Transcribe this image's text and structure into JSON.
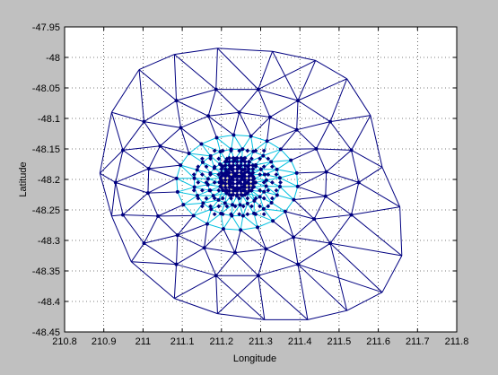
{
  "chart_data": {
    "type": "scatter",
    "title": "",
    "xlabel": "Longitude",
    "ylabel": "Latitude",
    "xlim": [
      210.8,
      211.8
    ],
    "ylim": [
      -48.45,
      -47.95
    ],
    "grid": true,
    "xticks": [
      "210.8",
      "210.9",
      "211",
      "211.1",
      "211.2",
      "211.3",
      "211.4",
      "211.5",
      "211.6",
      "211.7",
      "211.8"
    ],
    "yticks": [
      "-47.95",
      "-48",
      "-48.05",
      "-48.1",
      "-48.15",
      "-48.2",
      "-48.25",
      "-48.3",
      "-48.35",
      "-48.4",
      "-48.45"
    ],
    "colors": {
      "outer_mesh": "#000080",
      "inner_mesh": "#00c0e0",
      "core_mesh": "#e8e090",
      "nodes": "#000080",
      "figure_bg": "#c0c0c0",
      "axes_bg": "#ffffff"
    },
    "mesh": {
      "center": [
        211.24,
        -48.205
      ],
      "rings": [
        {
          "rx": 0.02,
          "ry": 0.01,
          "n": 14,
          "phase": 0.0,
          "level": "core"
        },
        {
          "rx": 0.045,
          "ry": 0.022,
          "n": 20,
          "phase": 0.3,
          "level": "core"
        },
        {
          "rx": 0.075,
          "ry": 0.037,
          "n": 24,
          "phase": 0.1,
          "level": "inner"
        },
        {
          "rx": 0.11,
          "ry": 0.055,
          "n": 24,
          "phase": 0.4,
          "level": "inner"
        },
        {
          "rx": 0.155,
          "ry": 0.078,
          "n": 22,
          "phase": 0.2,
          "level": "inner"
        },
        {
          "rx": 0.23,
          "ry": 0.115,
          "n": 18,
          "phase": 0.5,
          "level": "outer"
        },
        {
          "rx": 0.31,
          "ry": 0.155,
          "n": 18,
          "phase": 0.0,
          "level": "outer"
        }
      ],
      "outer_boundary": [
        [
          211.19,
          -47.985
        ],
        [
          211.33,
          -47.99
        ],
        [
          211.44,
          -48.005
        ],
        [
          211.52,
          -48.035
        ],
        [
          211.58,
          -48.095
        ],
        [
          211.61,
          -48.18
        ],
        [
          211.655,
          -48.245
        ],
        [
          211.66,
          -48.325
        ],
        [
          211.61,
          -48.385
        ],
        [
          211.52,
          -48.415
        ],
        [
          211.42,
          -48.43
        ],
        [
          211.31,
          -48.43
        ],
        [
          211.19,
          -48.42
        ],
        [
          211.08,
          -48.395
        ],
        [
          210.97,
          -48.335
        ],
        [
          210.92,
          -48.26
        ],
        [
          210.89,
          -48.19
        ],
        [
          210.92,
          -48.09
        ],
        [
          210.99,
          -48.02
        ],
        [
          211.08,
          -47.995
        ]
      ],
      "core_grid": {
        "x_from": 211.2,
        "x_to": 211.28,
        "x_step": 0.01,
        "y_from": -48.225,
        "y_to": -48.165,
        "y_step": 0.006
      },
      "diamond_grid": {
        "x_from": 211.13,
        "x_to": 211.36,
        "x_step": 0.021,
        "y_from": -48.27,
        "y_to": -48.14,
        "y_step": 0.013
      }
    }
  }
}
